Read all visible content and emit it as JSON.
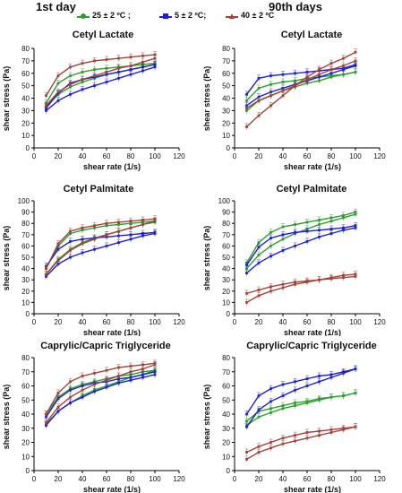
{
  "headers": {
    "left": "1st day",
    "right": "90th days"
  },
  "legend": [
    {
      "label": "25 ± 2 ºC ;",
      "color": "#2ca02c",
      "marker": "circle"
    },
    {
      "label": "5 ± 2 ºC;",
      "color": "#1f1fd6",
      "marker": "square"
    },
    {
      "label": "40 ± 2 ºC",
      "color": "#a0443a",
      "marker": "triangle"
    }
  ],
  "chart_data": [
    {
      "type": "line",
      "title": "Cetyl Lactate",
      "xlabel": "shear rate (1/s)",
      "ylabel": "shear stress (Pa)",
      "xlim": [
        0,
        120
      ],
      "ylim": [
        0,
        80
      ],
      "xticks": [
        0,
        20,
        40,
        60,
        80,
        100,
        120
      ],
      "yticks": [
        0,
        10,
        20,
        30,
        40,
        50,
        60,
        70,
        80
      ],
      "x": [
        10,
        20,
        30,
        40,
        50,
        60,
        70,
        80,
        90,
        100
      ],
      "series": [
        {
          "name": "25 ± 2 ºC",
          "color": "#2ca02c",
          "values": [
            36,
            52,
            58,
            61,
            63,
            64,
            65,
            66,
            67,
            68
          ]
        },
        {
          "name": "25 ± 2 ºC",
          "color": "#2ca02c",
          "values": [
            33,
            43,
            49,
            53,
            56,
            59,
            61,
            63,
            65,
            67
          ]
        },
        {
          "name": "5 ± 2 ºC",
          "color": "#1f1fd6",
          "values": [
            32,
            44,
            52,
            55,
            57,
            59,
            61,
            63,
            65,
            67
          ]
        },
        {
          "name": "5 ± 2 ºC",
          "color": "#1f1fd6",
          "values": [
            30,
            38,
            43,
            47,
            50,
            53,
            56,
            59,
            62,
            65
          ]
        },
        {
          "name": "40 ± 2 ºC",
          "color": "#a0443a",
          "values": [
            42,
            58,
            65,
            68,
            70,
            71,
            72,
            73,
            74,
            75
          ]
        },
        {
          "name": "40 ± 2 ºC",
          "color": "#a0443a",
          "values": [
            34,
            45,
            51,
            55,
            58,
            61,
            64,
            66,
            69,
            72
          ]
        }
      ]
    },
    {
      "type": "line",
      "title": "Cetyl Lactate",
      "xlabel": "shear rate (1/s)",
      "ylabel": "shear stress (Pa)",
      "xlim": [
        0,
        120
      ],
      "ylim": [
        0,
        80
      ],
      "xticks": [
        0,
        20,
        40,
        60,
        80,
        100,
        120
      ],
      "yticks": [
        0,
        10,
        20,
        30,
        40,
        50,
        60,
        70,
        80
      ],
      "x": [
        10,
        20,
        30,
        40,
        50,
        60,
        70,
        80,
        90,
        100
      ],
      "series": [
        {
          "name": "25 ± 2 ºC",
          "color": "#2ca02c",
          "values": [
            38,
            48,
            51,
            53,
            54,
            56,
            57,
            58,
            59,
            61
          ]
        },
        {
          "name": "25 ± 2 ºC",
          "color": "#2ca02c",
          "values": [
            30,
            38,
            42,
            46,
            49,
            52,
            54,
            57,
            59,
            61
          ]
        },
        {
          "name": "5 ± 2 ºC",
          "color": "#1f1fd6",
          "values": [
            43,
            56,
            58,
            59,
            60,
            61,
            62,
            63,
            64,
            67
          ]
        },
        {
          "name": "5 ± 2 ºC",
          "color": "#1f1fd6",
          "values": [
            34,
            41,
            45,
            48,
            51,
            54,
            57,
            60,
            63,
            66
          ]
        },
        {
          "name": "40 ± 2 ºC",
          "color": "#a0443a",
          "values": [
            17,
            26,
            34,
            42,
            50,
            57,
            63,
            68,
            72,
            77
          ]
        },
        {
          "name": "40 ± 2 ºC",
          "color": "#a0443a",
          "values": [
            32,
            38,
            42,
            46,
            50,
            55,
            59,
            63,
            66,
            70
          ]
        }
      ]
    },
    {
      "type": "line",
      "title": "Cetyl Palmitate",
      "xlabel": "shear rate (1/s)",
      "ylabel": "shear stress (Pa)",
      "xlim": [
        0,
        120
      ],
      "ylim": [
        0,
        100
      ],
      "xticks": [
        0,
        20,
        40,
        60,
        80,
        100,
        120
      ],
      "yticks": [
        0,
        10,
        20,
        30,
        40,
        50,
        60,
        70,
        80,
        90,
        100
      ],
      "x": [
        10,
        20,
        30,
        40,
        50,
        60,
        70,
        80,
        90,
        100
      ],
      "series": [
        {
          "name": "25 ± 2 ºC",
          "color": "#2ca02c",
          "values": [
            40,
            60,
            71,
            74,
            76,
            78,
            79,
            80,
            81,
            82
          ]
        },
        {
          "name": "25 ± 2 ºC",
          "color": "#2ca02c",
          "values": [
            35,
            48,
            57,
            63,
            67,
            70,
            73,
            76,
            79,
            81
          ]
        },
        {
          "name": "5 ± 2 ºC",
          "color": "#1f1fd6",
          "values": [
            42,
            57,
            64,
            66,
            67,
            68,
            69,
            70,
            71,
            72
          ]
        },
        {
          "name": "5 ± 2 ºC",
          "color": "#1f1fd6",
          "values": [
            33,
            44,
            50,
            54,
            57,
            60,
            63,
            66,
            69,
            71
          ]
        },
        {
          "name": "40 ± 2 ºC",
          "color": "#a0443a",
          "values": [
            40,
            62,
            73,
            76,
            78,
            80,
            81,
            82,
            83,
            84
          ]
        },
        {
          "name": "40 ± 2 ºC",
          "color": "#a0443a",
          "values": [
            35,
            47,
            56,
            62,
            66,
            70,
            73,
            76,
            79,
            82
          ]
        }
      ]
    },
    {
      "type": "line",
      "title": "Cetyl Palmitate",
      "xlabel": "shear rate (1/s)",
      "ylabel": "shear stress (Pa)",
      "xlim": [
        0,
        120
      ],
      "ylim": [
        0,
        100
      ],
      "xticks": [
        0,
        20,
        40,
        60,
        80,
        100,
        120
      ],
      "yticks": [
        0,
        10,
        20,
        30,
        40,
        50,
        60,
        70,
        80,
        90,
        100
      ],
      "x": [
        10,
        20,
        30,
        40,
        50,
        60,
        70,
        80,
        90,
        100
      ],
      "series": [
        {
          "name": "25 ± 2 ºC",
          "color": "#2ca02c",
          "values": [
            45,
            63,
            72,
            77,
            79,
            81,
            83,
            85,
            87,
            90
          ]
        },
        {
          "name": "25 ± 2 ºC",
          "color": "#2ca02c",
          "values": [
            40,
            52,
            60,
            66,
            71,
            75,
            79,
            82,
            85,
            88
          ]
        },
        {
          "name": "5 ± 2 ºC",
          "color": "#1f1fd6",
          "values": [
            43,
            59,
            67,
            70,
            72,
            73,
            74,
            75,
            76,
            78
          ]
        },
        {
          "name": "5 ± 2 ºC",
          "color": "#1f1fd6",
          "values": [
            36,
            45,
            51,
            56,
            60,
            64,
            68,
            71,
            74,
            76
          ]
        },
        {
          "name": "40 ± 2 ºC",
          "color": "#a0443a",
          "values": [
            18,
            21,
            24,
            26,
            28,
            29,
            30,
            31,
            32,
            33
          ]
        },
        {
          "name": "40 ± 2 ºC",
          "color": "#a0443a",
          "values": [
            10,
            16,
            20,
            23,
            26,
            28,
            30,
            32,
            34,
            35
          ]
        }
      ]
    },
    {
      "type": "line",
      "title": "Caprylic/Capric Triglyceride",
      "xlabel": "shear rate (1/s)",
      "ylabel": "shear stress (Pa)",
      "xlim": [
        0,
        120
      ],
      "ylim": [
        0,
        80
      ],
      "xticks": [
        0,
        20,
        40,
        60,
        80,
        100,
        120
      ],
      "yticks": [
        0,
        10,
        20,
        30,
        40,
        50,
        60,
        70,
        80
      ],
      "x": [
        10,
        20,
        30,
        40,
        50,
        60,
        70,
        80,
        90,
        100
      ],
      "series": [
        {
          "name": "25 ± 2 ºC",
          "color": "#2ca02c",
          "values": [
            40,
            52,
            58,
            61,
            63,
            65,
            67,
            68,
            70,
            71
          ]
        },
        {
          "name": "25 ± 2 ºC",
          "color": "#2ca02c",
          "values": [
            33,
            42,
            48,
            53,
            57,
            60,
            63,
            66,
            68,
            71
          ]
        },
        {
          "name": "5 ± 2 ºC",
          "color": "#1f1fd6",
          "values": [
            38,
            51,
            57,
            60,
            62,
            63,
            65,
            66,
            68,
            70
          ]
        },
        {
          "name": "5 ± 2 ºC",
          "color": "#1f1fd6",
          "values": [
            32,
            42,
            48,
            52,
            56,
            59,
            62,
            64,
            66,
            68
          ]
        },
        {
          "name": "40 ± 2 ºC",
          "color": "#a0443a",
          "values": [
            40,
            55,
            63,
            67,
            69,
            71,
            73,
            74,
            75,
            76
          ]
        },
        {
          "name": "40 ± 2 ºC",
          "color": "#a0443a",
          "values": [
            34,
            45,
            52,
            57,
            61,
            64,
            67,
            70,
            72,
            75
          ]
        }
      ]
    },
    {
      "type": "line",
      "title": "Caprylic/Capric Triglyceride",
      "xlabel": "shear rate (1/s)",
      "ylabel": "shear stress (Pa)",
      "xlim": [
        0,
        120
      ],
      "ylim": [
        0,
        80
      ],
      "xticks": [
        0,
        20,
        40,
        60,
        80,
        100,
        120
      ],
      "yticks": [
        0,
        10,
        20,
        30,
        40,
        50,
        60,
        70,
        80
      ],
      "x": [
        10,
        20,
        30,
        40,
        50,
        60,
        70,
        80,
        90,
        100
      ],
      "series": [
        {
          "name": "25 ± 2 ºC",
          "color": "#2ca02c",
          "values": [
            35,
            42,
            44,
            46,
            48,
            49,
            51,
            52,
            53,
            55
          ]
        },
        {
          "name": "25 ± 2 ºC",
          "color": "#2ca02c",
          "values": [
            32,
            38,
            41,
            44,
            46,
            48,
            50,
            52,
            53,
            55
          ]
        },
        {
          "name": "5 ± 2 ºC",
          "color": "#1f1fd6",
          "values": [
            40,
            53,
            58,
            61,
            63,
            65,
            67,
            68,
            70,
            72
          ]
        },
        {
          "name": "5 ± 2 ºC",
          "color": "#1f1fd6",
          "values": [
            31,
            43,
            49,
            53,
            57,
            60,
            63,
            66,
            69,
            72
          ]
        },
        {
          "name": "40 ± 2 ºC",
          "color": "#a0443a",
          "values": [
            13,
            17,
            20,
            23,
            25,
            27,
            28,
            29,
            30,
            31
          ]
        },
        {
          "name": "40 ± 2 ºC",
          "color": "#a0443a",
          "values": [
            8,
            13,
            16,
            19,
            21,
            23,
            25,
            27,
            29,
            31
          ]
        }
      ]
    }
  ]
}
